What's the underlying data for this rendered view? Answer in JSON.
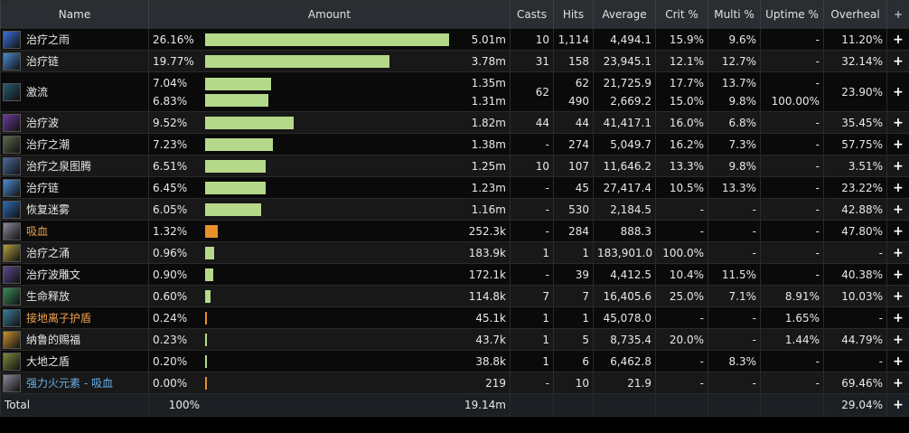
{
  "headers": {
    "name": "Name",
    "amount": "Amount",
    "casts": "Casts",
    "hits": "Hits",
    "average": "Average",
    "crit": "Crit %",
    "multi": "Multi %",
    "uptime": "Uptime %",
    "overheal": "Overheal",
    "plus": "+"
  },
  "colors": {
    "bar_green": "#b5d98a",
    "bar_orange": "#e8902c",
    "name_default": "#e8e8e8",
    "name_orange": "#f0a050",
    "name_blue": "#6ab0e8"
  },
  "rows": [
    {
      "name": "治疗之雨",
      "color": "default",
      "icon": "rain-icon",
      "icon_color": "#3a6fd8",
      "pct": [
        "26.16%"
      ],
      "bar": [
        26.16
      ],
      "barcolor": "green",
      "amount": [
        "5.01m"
      ],
      "casts": [
        "10"
      ],
      "hits": [
        "1,114"
      ],
      "avg": [
        "4,494.1"
      ],
      "crit": [
        "15.9%"
      ],
      "multi": [
        "9.6%"
      ],
      "uptime": [
        "-"
      ],
      "overheal": "11.20%"
    },
    {
      "name": "治疗链",
      "color": "default",
      "icon": "chain-icon",
      "icon_color": "#4a8ad0",
      "pct": [
        "19.77%"
      ],
      "bar": [
        19.77
      ],
      "barcolor": "green",
      "amount": [
        "3.78m"
      ],
      "casts": [
        "31"
      ],
      "hits": [
        "158"
      ],
      "avg": [
        "23,945.1"
      ],
      "crit": [
        "12.1%"
      ],
      "multi": [
        "12.7%"
      ],
      "uptime": [
        "-"
      ],
      "overheal": "32.14%"
    },
    {
      "name": "激流",
      "color": "default",
      "icon": "riptide-icon",
      "icon_color": "#2a5a70",
      "pct": [
        "7.04%",
        "6.83%"
      ],
      "bar": [
        7.04,
        6.83
      ],
      "barcolor": "green",
      "amount": [
        "1.35m",
        "1.31m"
      ],
      "casts": [
        "62",
        ""
      ],
      "hits": [
        "62",
        "490"
      ],
      "avg": [
        "21,725.9",
        "2,669.2"
      ],
      "crit": [
        "17.7%",
        "15.0%"
      ],
      "multi": [
        "13.7%",
        "9.8%"
      ],
      "uptime": [
        "-",
        "100.00%"
      ],
      "overheal": "23.90%",
      "tall": true
    },
    {
      "name": "治疗波",
      "color": "default",
      "icon": "wave-icon",
      "icon_color": "#6a3a9a",
      "pct": [
        "9.52%"
      ],
      "bar": [
        9.52
      ],
      "barcolor": "green",
      "amount": [
        "1.82m"
      ],
      "casts": [
        "44"
      ],
      "hits": [
        "44"
      ],
      "avg": [
        "41,417.1"
      ],
      "crit": [
        "16.0%"
      ],
      "multi": [
        "6.8%"
      ],
      "uptime": [
        "-"
      ],
      "overheal": "35.45%"
    },
    {
      "name": "治疗之潮",
      "color": "default",
      "icon": "tide-icon",
      "icon_color": "#5a6a4a",
      "pct": [
        "7.23%"
      ],
      "bar": [
        7.23
      ],
      "barcolor": "green",
      "amount": [
        "1.38m"
      ],
      "casts": [
        "-"
      ],
      "hits": [
        "274"
      ],
      "avg": [
        "5,049.7"
      ],
      "crit": [
        "16.2%"
      ],
      "multi": [
        "7.3%"
      ],
      "uptime": [
        "-"
      ],
      "overheal": "57.75%"
    },
    {
      "name": "治疗之泉图腾",
      "color": "default",
      "icon": "totem-icon",
      "icon_color": "#4a6a9a",
      "pct": [
        "6.51%"
      ],
      "bar": [
        6.51
      ],
      "barcolor": "green",
      "amount": [
        "1.25m"
      ],
      "casts": [
        "10"
      ],
      "hits": [
        "107"
      ],
      "avg": [
        "11,646.2"
      ],
      "crit": [
        "13.3%"
      ],
      "multi": [
        "9.8%"
      ],
      "uptime": [
        "-"
      ],
      "overheal": "3.51%"
    },
    {
      "name": "治疗链",
      "color": "default",
      "icon": "chain-icon",
      "icon_color": "#4a8ad0",
      "pct": [
        "6.45%"
      ],
      "bar": [
        6.45
      ],
      "barcolor": "green",
      "amount": [
        "1.23m"
      ],
      "casts": [
        "-"
      ],
      "hits": [
        "45"
      ],
      "avg": [
        "27,417.4"
      ],
      "crit": [
        "10.5%"
      ],
      "multi": [
        "13.3%"
      ],
      "uptime": [
        "-"
      ],
      "overheal": "23.22%"
    },
    {
      "name": "恢复迷雾",
      "color": "default",
      "icon": "mist-icon",
      "icon_color": "#2a6ab0",
      "pct": [
        "6.05%"
      ],
      "bar": [
        6.05
      ],
      "barcolor": "green",
      "amount": [
        "1.16m"
      ],
      "casts": [
        "-"
      ],
      "hits": [
        "530"
      ],
      "avg": [
        "2,184.5"
      ],
      "crit": [
        "-"
      ],
      "multi": [
        "-"
      ],
      "uptime": [
        "-"
      ],
      "overheal": "42.88%"
    },
    {
      "name": "吸血",
      "color": "orange",
      "icon": "leech-icon",
      "icon_color": "#8a8a9a",
      "pct": [
        "1.32%"
      ],
      "bar": [
        1.32
      ],
      "barcolor": "orange",
      "amount": [
        "252.3k"
      ],
      "casts": [
        "-"
      ],
      "hits": [
        "284"
      ],
      "avg": [
        "888.3"
      ],
      "crit": [
        "-"
      ],
      "multi": [
        "-"
      ],
      "uptime": [
        "-"
      ],
      "overheal": "47.80%"
    },
    {
      "name": "治疗之涌",
      "color": "default",
      "icon": "surge-icon",
      "icon_color": "#b0a040",
      "pct": [
        "0.96%"
      ],
      "bar": [
        0.96
      ],
      "barcolor": "green",
      "amount": [
        "183.9k"
      ],
      "casts": [
        "1"
      ],
      "hits": [
        "1"
      ],
      "avg": [
        "183,901.0"
      ],
      "crit": [
        "100.0%"
      ],
      "multi": [
        "-"
      ],
      "uptime": [
        "-"
      ],
      "overheal": "-"
    },
    {
      "name": "治疗波雕文",
      "color": "default",
      "icon": "glyph-icon",
      "icon_color": "#5a4a8a",
      "pct": [
        "0.90%"
      ],
      "bar": [
        0.9
      ],
      "barcolor": "green",
      "amount": [
        "172.1k"
      ],
      "casts": [
        "-"
      ],
      "hits": [
        "39"
      ],
      "avg": [
        "4,412.5"
      ],
      "crit": [
        "10.4%"
      ],
      "multi": [
        "11.5%"
      ],
      "uptime": [
        "-"
      ],
      "overheal": "40.38%"
    },
    {
      "name": "生命释放",
      "color": "default",
      "icon": "unleash-icon",
      "icon_color": "#3a8a5a",
      "pct": [
        "0.60%"
      ],
      "bar": [
        0.6
      ],
      "barcolor": "green",
      "amount": [
        "114.8k"
      ],
      "casts": [
        "7"
      ],
      "hits": [
        "7"
      ],
      "avg": [
        "16,405.6"
      ],
      "crit": [
        "25.0%"
      ],
      "multi": [
        "7.1%"
      ],
      "uptime": [
        "8.91%"
      ],
      "overheal": "10.03%"
    },
    {
      "name": "接地离子护盾",
      "color": "orange",
      "icon": "shield-icon",
      "icon_color": "#3a7a9a",
      "pct": [
        "0.24%"
      ],
      "bar": [
        0.24
      ],
      "barcolor": "orange",
      "amount": [
        "45.1k"
      ],
      "casts": [
        "1"
      ],
      "hits": [
        "1"
      ],
      "avg": [
        "45,078.0"
      ],
      "crit": [
        "-"
      ],
      "multi": [
        "-"
      ],
      "uptime": [
        "1.65%"
      ],
      "overheal": "-"
    },
    {
      "name": "纳鲁的赐福",
      "color": "default",
      "icon": "naaru-icon",
      "icon_color": "#c89030",
      "pct": [
        "0.23%"
      ],
      "bar": [
        0.23
      ],
      "barcolor": "green",
      "amount": [
        "43.7k"
      ],
      "casts": [
        "1"
      ],
      "hits": [
        "5"
      ],
      "avg": [
        "8,735.4"
      ],
      "crit": [
        "20.0%"
      ],
      "multi": [
        "-"
      ],
      "uptime": [
        "1.44%"
      ],
      "overheal": "44.79%"
    },
    {
      "name": "大地之盾",
      "color": "default",
      "icon": "earth-shield-icon",
      "icon_color": "#7a8a3a",
      "pct": [
        "0.20%"
      ],
      "bar": [
        0.2
      ],
      "barcolor": "green",
      "amount": [
        "38.8k"
      ],
      "casts": [
        "1"
      ],
      "hits": [
        "6"
      ],
      "avg": [
        "6,462.8"
      ],
      "crit": [
        "-"
      ],
      "multi": [
        "8.3%"
      ],
      "uptime": [
        "-"
      ],
      "overheal": "-"
    },
    {
      "name": "强力火元素 - 吸血",
      "color": "blue",
      "icon": "leech-icon",
      "icon_color": "#8a8a9a",
      "pct": [
        "0.00%"
      ],
      "bar": [
        0.0
      ],
      "barcolor": "orange",
      "amount": [
        "219"
      ],
      "casts": [
        "-"
      ],
      "hits": [
        "10"
      ],
      "avg": [
        "21.9"
      ],
      "crit": [
        "-"
      ],
      "multi": [
        "-"
      ],
      "uptime": [
        "-"
      ],
      "overheal": "69.46%"
    }
  ],
  "total": {
    "label": "Total",
    "pct": "100%",
    "amount": "19.14m",
    "overheal": "29.04%"
  }
}
